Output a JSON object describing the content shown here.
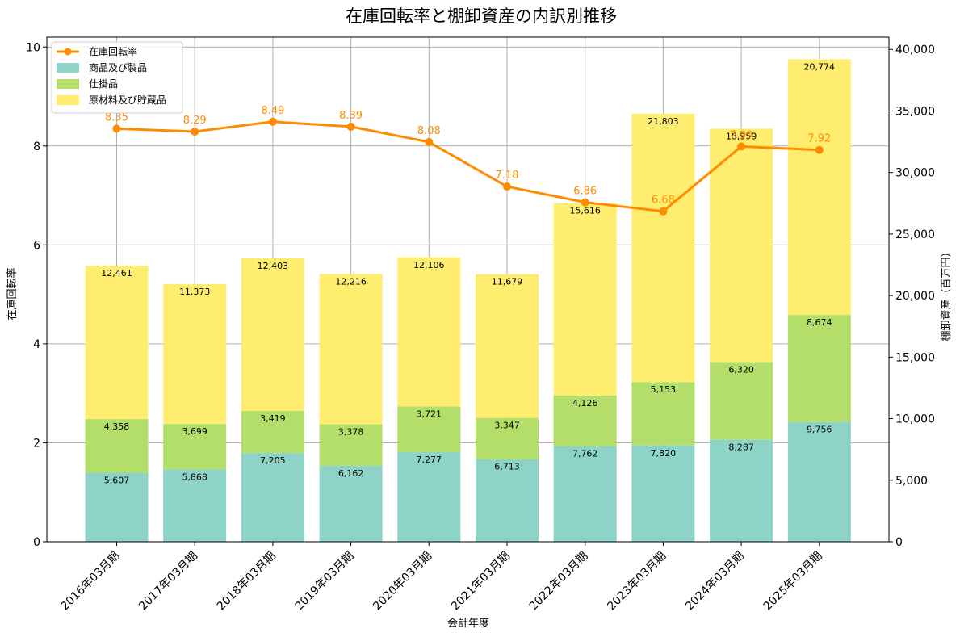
{
  "chart_data": {
    "type": "bar",
    "title": "在庫回転率と棚卸資産の内訳別推移",
    "xlabel": "会計年度",
    "ylabel_left": "在庫回転率",
    "ylabel_right": "棚卸資産（百万円）",
    "categories": [
      "2016年03月期",
      "2017年03月期",
      "2018年03月期",
      "2019年03月期",
      "2020年03月期",
      "2021年03月期",
      "2022年03月期",
      "2023年03月期",
      "2024年03月期",
      "2025年03月期"
    ],
    "ylim_left": [
      0,
      10.2
    ],
    "ylim_right": [
      0,
      41000
    ],
    "yticks_left": [
      0,
      2,
      4,
      6,
      8,
      10
    ],
    "yticks_right": [
      0,
      5000,
      10000,
      15000,
      20000,
      25000,
      30000,
      35000,
      40000
    ],
    "grid": true,
    "legend_position": "top-left",
    "series": [
      {
        "name": "商品及び製品",
        "kind": "bar",
        "axis": "right",
        "color": "#8dd3c7",
        "values": [
          5607,
          5868,
          7205,
          6162,
          7277,
          6713,
          7762,
          7820,
          8287,
          9756
        ],
        "labels": [
          "5,607",
          "5,868",
          "7,205",
          "6,162",
          "7,277",
          "6,713",
          "7,762",
          "7,820",
          "8,287",
          "9,756"
        ]
      },
      {
        "name": "仕掛品",
        "kind": "bar",
        "axis": "right",
        "color": "#b3de69",
        "values": [
          4358,
          3699,
          3419,
          3378,
          3721,
          3347,
          4126,
          5153,
          6320,
          8674
        ],
        "labels": [
          "4,358",
          "3,699",
          "3,419",
          "3,378",
          "3,721",
          "3,347",
          "4,126",
          "5,153",
          "6,320",
          "8,674"
        ]
      },
      {
        "name": "原材料及び貯蔵品",
        "kind": "bar",
        "axis": "right",
        "color": "#ffed6f",
        "values": [
          12461,
          11373,
          12403,
          12216,
          12106,
          11679,
          15616,
          21803,
          18959,
          20774
        ],
        "labels": [
          "12,461",
          "11,373",
          "12,403",
          "12,216",
          "12,106",
          "11,679",
          "15,616",
          "21,803",
          "18,959",
          "20,774"
        ]
      },
      {
        "name": "在庫回転率",
        "kind": "line",
        "axis": "left",
        "color": "#ff8c00",
        "values": [
          8.35,
          8.29,
          8.49,
          8.39,
          8.08,
          7.18,
          6.86,
          6.68,
          7.99,
          7.92
        ],
        "labels": [
          "8.35",
          "8.29",
          "8.49",
          "8.39",
          "8.08",
          "7.18",
          "6.86",
          "6.68",
          "7.99",
          "7.92"
        ]
      }
    ]
  }
}
